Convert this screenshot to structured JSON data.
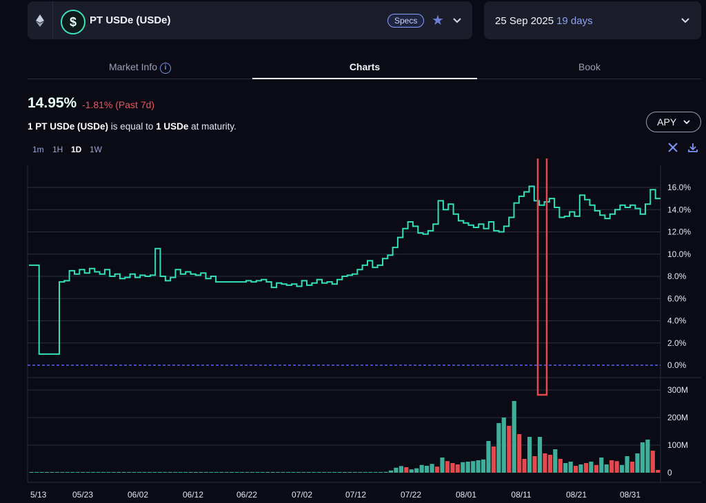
{
  "market": {
    "token_name": "PT USDe (USDe)",
    "specs_label": "Specs"
  },
  "maturity": {
    "date": "25 Sep 2025",
    "days_left": "19 days"
  },
  "tabs": [
    {
      "label": "Market Info"
    },
    {
      "label": "Charts"
    },
    {
      "label": "Book"
    }
  ],
  "summary": {
    "current_apy": "14.95%",
    "change_7d": "-1.81% (Past 7d)",
    "eq_pre": "1 PT USDe (USDe)",
    "eq_mid": " is equal to ",
    "eq_post": "1 USDe",
    "eq_end": " at maturity."
  },
  "metric_select": {
    "value": "APY"
  },
  "timeframes": [
    "1m",
    "1H",
    "1D",
    "1W"
  ],
  "active_timeframe": "1D",
  "colors": {
    "apy_line": "#33e0b9",
    "vol_up": "#3fae9a",
    "vol_down": "#e5484d",
    "zero_line": "#5563ff",
    "highlight": "#e5484d"
  },
  "icons": {
    "chain": "ethereum-icon",
    "token": "dollar-coin-icon",
    "tools": "wrench-icon",
    "download": "download-icon"
  },
  "chart_data": {
    "type": "line",
    "x_tick_labels": [
      "5/13",
      "05/23",
      "06/02",
      "06/12",
      "06/22",
      "07/02",
      "07/12",
      "07/22",
      "08/01",
      "08/11",
      "08/21",
      "08/31"
    ],
    "y_ticks": [
      "0.0%",
      "2.0%",
      "4.0%",
      "6.0%",
      "8.0%",
      "10.0%",
      "12.0%",
      "14.0%",
      "16.0%"
    ],
    "ylim": [
      -0.5,
      18
    ],
    "series": [
      {
        "values": [
          9.0,
          9.0,
          1.0,
          1.0,
          1.0,
          1.0,
          7.5,
          7.6,
          8.5,
          8.2,
          8.6,
          8.3,
          8.7,
          8.4,
          8.2,
          8.6,
          8.0,
          8.2,
          7.8,
          7.9,
          8.2,
          7.9,
          8.1,
          8.0,
          8.1,
          10.5,
          8.0,
          7.6,
          7.9,
          8.6,
          8.2,
          8.4,
          8.2,
          8.1,
          8.3,
          7.8,
          8.0,
          7.5,
          7.5,
          7.5,
          7.5,
          7.5,
          7.5,
          7.6,
          7.5,
          7.6,
          7.7,
          7.5,
          7.0,
          7.4,
          7.3,
          7.2,
          7.3,
          7.1,
          7.6,
          7.2,
          7.4,
          7.7,
          7.4,
          7.5,
          7.3,
          7.7,
          8.0,
          8.1,
          8.2,
          8.6,
          9.0,
          9.4,
          8.8,
          9.0,
          9.6,
          9.9,
          10.6,
          11.5,
          12.3,
          12.9,
          12.5,
          11.9,
          11.8,
          12.1,
          12.7,
          14.8,
          14.0,
          14.5,
          13.6,
          13.0,
          12.8,
          12.6,
          12.4,
          12.7,
          12.3,
          12.9,
          12.1,
          12.0,
          12.5,
          13.3,
          14.6,
          15.2,
          15.6,
          16.1,
          14.8,
          14.4,
          14.7,
          15.0,
          14.2,
          13.3,
          13.4,
          13.8,
          13.4,
          15.3,
          14.9,
          14.4,
          13.9,
          13.5,
          13.2,
          13.6,
          14.0,
          14.4,
          14.2,
          14.4,
          14.1,
          13.6,
          14.5,
          15.8,
          15.0
        ]
      }
    ],
    "zero_line": 0,
    "volume": {
      "y_ticks": [
        "0",
        "100M",
        "200M",
        "300M"
      ],
      "ylim": [
        0,
        310
      ],
      "values": [
        1,
        1,
        1,
        1,
        1,
        1,
        1,
        1,
        1,
        1,
        1,
        1,
        1,
        1,
        1,
        1,
        1,
        1,
        1,
        1,
        1,
        1,
        1,
        1,
        1,
        1,
        1,
        1,
        1,
        1,
        1,
        1,
        1,
        1,
        1,
        1,
        1,
        1,
        1,
        1,
        1,
        1,
        1,
        1,
        1,
        1,
        1,
        1,
        1,
        1,
        1,
        1,
        1,
        1,
        1,
        1,
        1,
        1,
        1,
        1,
        1,
        1,
        1,
        1,
        1,
        1,
        1,
        1,
        2,
        3,
        8,
        18,
        24,
        20,
        12,
        16,
        28,
        25,
        32,
        22,
        55,
        42,
        35,
        30,
        38,
        40,
        42,
        45,
        48,
        115,
        95,
        180,
        200,
        170,
        260,
        140,
        50,
        130,
        60,
        130,
        70,
        65,
        85,
        50,
        35,
        40,
        25,
        30,
        35,
        40,
        28,
        55,
        30,
        45,
        42,
        28,
        60,
        40,
        70,
        110,
        120,
        80,
        10
      ],
      "up": [
        1,
        1,
        1,
        1,
        1,
        1,
        1,
        1,
        1,
        1,
        1,
        1,
        1,
        1,
        1,
        1,
        1,
        1,
        1,
        1,
        1,
        1,
        1,
        1,
        1,
        1,
        1,
        1,
        1,
        1,
        1,
        1,
        1,
        1,
        1,
        1,
        1,
        1,
        1,
        1,
        1,
        1,
        1,
        1,
        1,
        1,
        1,
        1,
        1,
        1,
        1,
        1,
        1,
        1,
        1,
        1,
        1,
        1,
        1,
        1,
        1,
        1,
        1,
        1,
        1,
        1,
        1,
        1,
        1,
        1,
        1,
        1,
        1,
        0,
        1,
        1,
        1,
        1,
        1,
        0,
        1,
        0,
        0,
        0,
        1,
        1,
        1,
        1,
        1,
        1,
        0,
        1,
        1,
        0,
        1,
        0,
        0,
        1,
        0,
        1,
        0,
        0,
        1,
        0,
        1,
        1,
        0,
        1,
        0,
        1,
        0,
        1,
        1,
        0,
        0,
        1,
        1,
        0,
        1,
        1,
        1,
        0,
        0
      ]
    }
  }
}
